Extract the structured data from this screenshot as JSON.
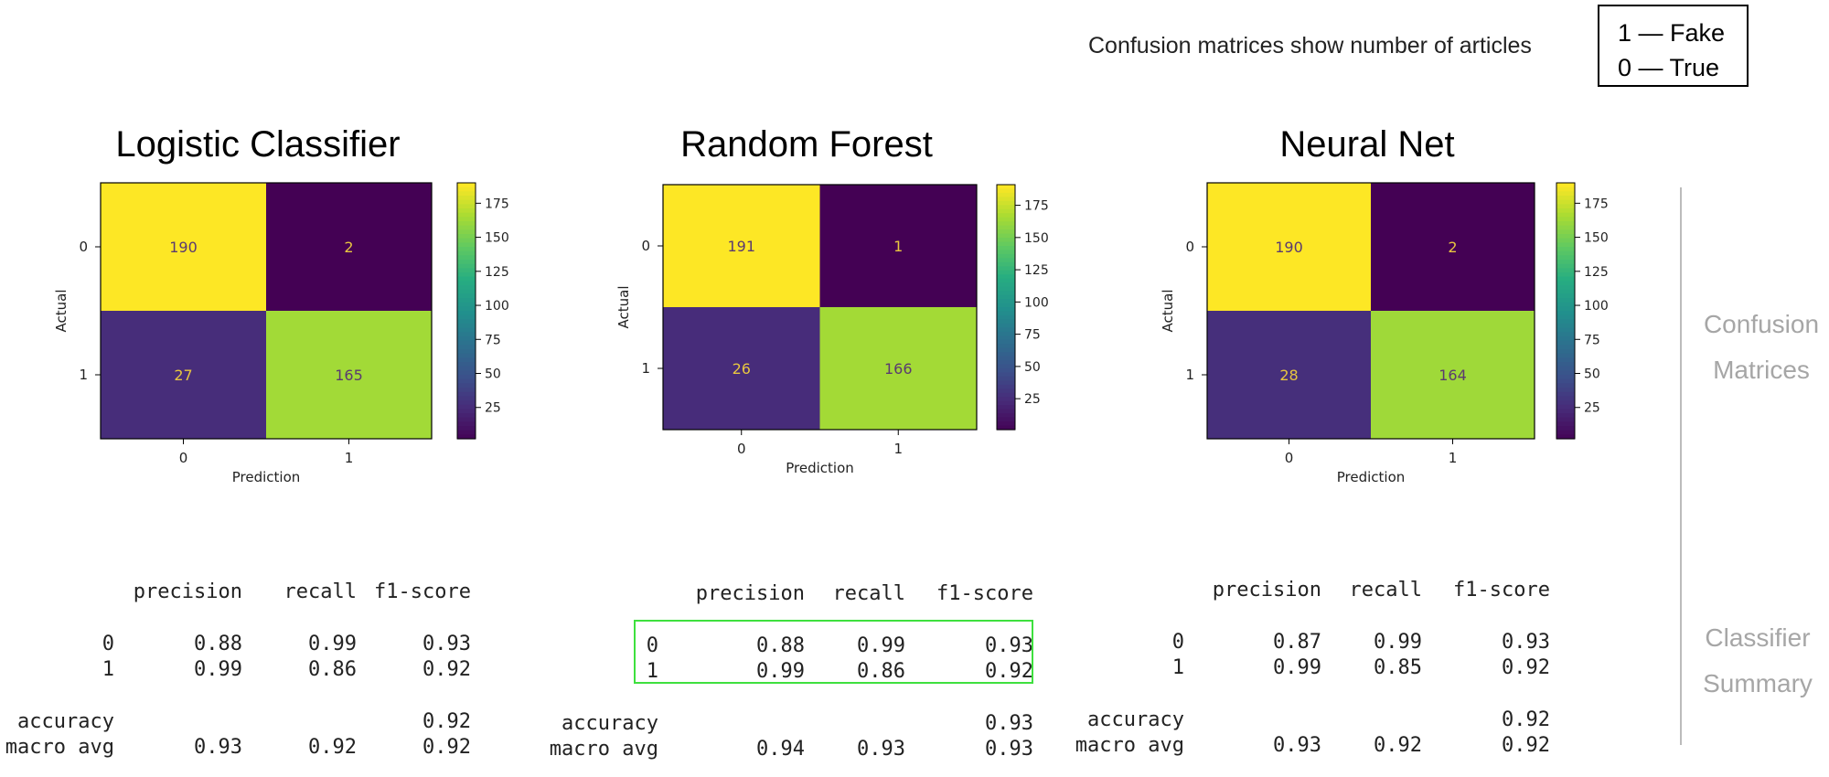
{
  "note": "Confusion matrices show number of articles",
  "legend": [
    "1 — Fake",
    "0 — True"
  ],
  "side_labels": {
    "confusion": [
      "Confusion",
      "Matrices"
    ],
    "summary": [
      "Classifier",
      "Summary"
    ]
  },
  "report_headers": [
    "precision",
    "recall",
    "f1-score"
  ],
  "chart_data": [
    {
      "type": "heatmap",
      "title": "Logistic Classifier",
      "xlabel": "Prediction",
      "ylabel": "Actual",
      "x_categories": [
        "0",
        "1"
      ],
      "y_categories": [
        "0",
        "1"
      ],
      "values": [
        [
          190,
          2
        ],
        [
          27,
          165
        ]
      ],
      "colorbar_ticks": [
        25,
        50,
        75,
        100,
        125,
        150,
        175
      ],
      "colorbar_range": [
        2,
        190
      ],
      "report": {
        "rows": [
          {
            "label": "0",
            "precision": "0.88",
            "recall": "0.99",
            "f1": "0.93"
          },
          {
            "label": "1",
            "precision": "0.99",
            "recall": "0.86",
            "f1": "0.92"
          }
        ],
        "accuracy": "0.92",
        "macro_avg": {
          "label": "macro avg",
          "precision": "0.93",
          "recall": "0.92",
          "f1": "0.92"
        },
        "accuracy_label": "accuracy"
      }
    },
    {
      "type": "heatmap",
      "title": "Random Forest",
      "xlabel": "Prediction",
      "ylabel": "Actual",
      "x_categories": [
        "0",
        "1"
      ],
      "y_categories": [
        "0",
        "1"
      ],
      "values": [
        [
          191,
          1
        ],
        [
          26,
          166
        ]
      ],
      "colorbar_ticks": [
        25,
        50,
        75,
        100,
        125,
        150,
        175
      ],
      "colorbar_range": [
        1,
        191
      ],
      "report": {
        "rows": [
          {
            "label": "0",
            "precision": "0.88",
            "recall": "0.99",
            "f1": "0.93"
          },
          {
            "label": "1",
            "precision": "0.99",
            "recall": "0.86",
            "f1": "0.92"
          }
        ],
        "accuracy": "0.93",
        "macro_avg": {
          "label": "macro avg",
          "precision": "0.94",
          "recall": "0.93",
          "f1": "0.93"
        },
        "accuracy_label": "accuracy"
      }
    },
    {
      "type": "heatmap",
      "title": "Neural Net",
      "xlabel": "Prediction",
      "ylabel": "Actual",
      "x_categories": [
        "0",
        "1"
      ],
      "y_categories": [
        "0",
        "1"
      ],
      "values": [
        [
          190,
          2
        ],
        [
          28,
          164
        ]
      ],
      "colorbar_ticks": [
        25,
        50,
        75,
        100,
        125,
        150,
        175
      ],
      "colorbar_range": [
        2,
        190
      ],
      "report": {
        "rows": [
          {
            "label": "0",
            "precision": "0.87",
            "recall": "0.99",
            "f1": "0.93"
          },
          {
            "label": "1",
            "precision": "0.99",
            "recall": "0.85",
            "f1": "0.92"
          }
        ],
        "accuracy": "0.92",
        "macro_avg": {
          "label": "macro avg",
          "precision": "0.93",
          "recall": "0.92",
          "f1": "0.92"
        },
        "accuracy_label": "accuracy"
      }
    }
  ]
}
